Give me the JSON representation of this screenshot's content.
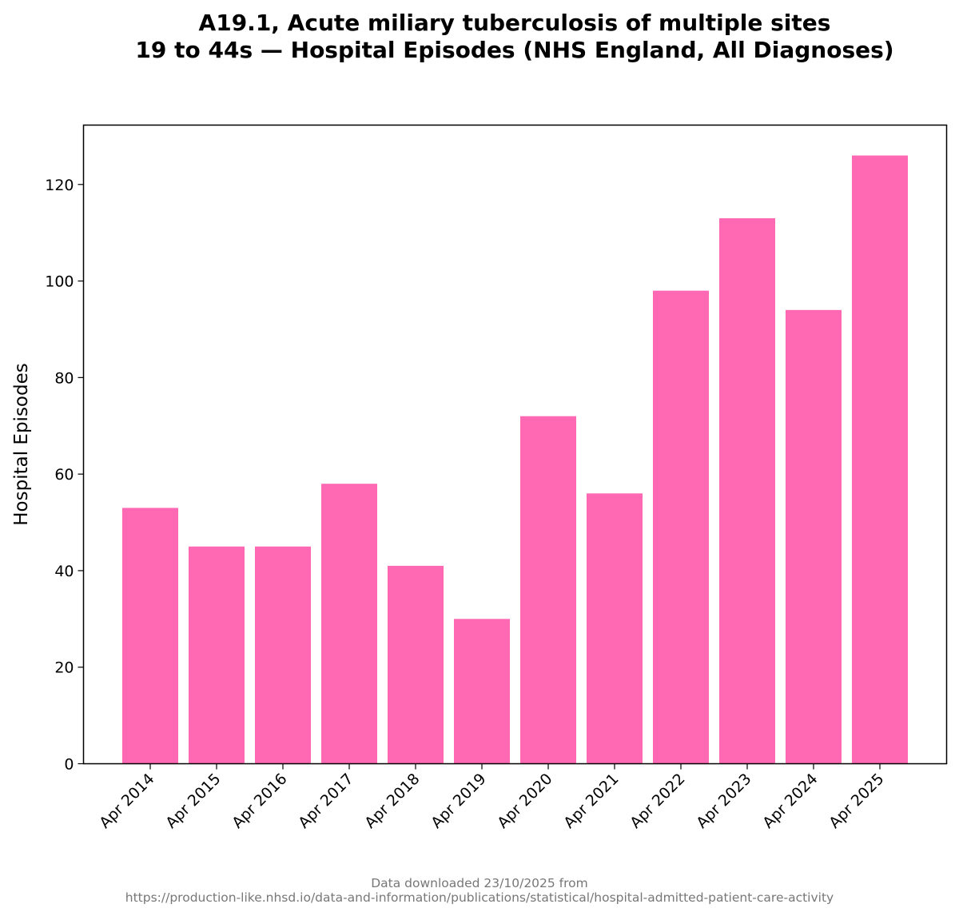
{
  "chart_data": {
    "type": "bar",
    "title": "A19.1, Acute miliary tuberculosis of multiple sites",
    "subtitle": "19 to 44s — Hospital Episodes (NHS England, All Diagnoses)",
    "xlabel": "",
    "ylabel": "Hospital Episodes",
    "categories": [
      "Apr 2014",
      "Apr 2015",
      "Apr 2016",
      "Apr 2017",
      "Apr 2018",
      "Apr 2019",
      "Apr 2020",
      "Apr 2021",
      "Apr 2022",
      "Apr 2023",
      "Apr 2024",
      "Apr 2025"
    ],
    "values": [
      53,
      45,
      45,
      58,
      41,
      30,
      72,
      56,
      98,
      113,
      94,
      126
    ],
    "ylim": [
      0,
      132.3
    ],
    "yticks": [
      0,
      20,
      40,
      60,
      80,
      100,
      120
    ],
    "bar_color": "#ff69b4",
    "grid": false,
    "legend": "none"
  },
  "footer": {
    "line1": "Data downloaded 23/10/2025 from",
    "line2": "https://production-like.nhsd.io/data-and-information/publications/statistical/hospital-admitted-patient-care-activity"
  }
}
